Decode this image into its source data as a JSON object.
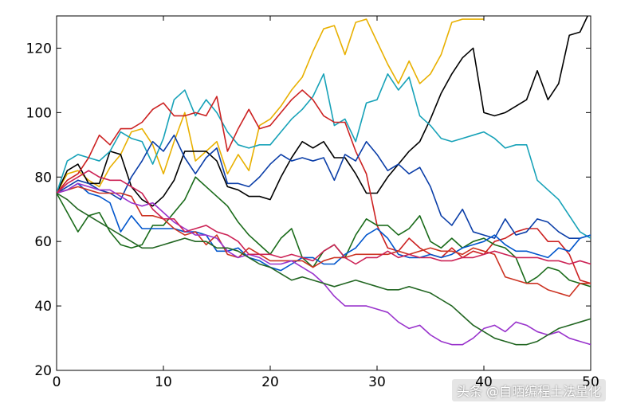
{
  "watermark": "头条 @自晒编程土法量化",
  "chart_data": {
    "type": "line",
    "title": "",
    "xlabel": "",
    "ylabel": "",
    "xlim": [
      0,
      50
    ],
    "ylim": [
      20,
      130
    ],
    "xticks": [
      0,
      10,
      20,
      30,
      40,
      50
    ],
    "yticks": [
      20,
      40,
      60,
      80,
      100,
      120
    ],
    "grid": false,
    "x": [
      0,
      1,
      2,
      3,
      4,
      5,
      6,
      7,
      8,
      9,
      10,
      11,
      12,
      13,
      14,
      15,
      16,
      17,
      18,
      19,
      20,
      21,
      22,
      23,
      24,
      25,
      26,
      27,
      28,
      29,
      30,
      31,
      32,
      33,
      34,
      35,
      36,
      37,
      38,
      39,
      40,
      41,
      42,
      43,
      44,
      45,
      46,
      47,
      48,
      49,
      50
    ],
    "series": [
      {
        "color": "#e8b000",
        "values": [
          75,
          81,
          82,
          79,
          77,
          83,
          87,
          94,
          95,
          90,
          81,
          91,
          100,
          85,
          88,
          91,
          81,
          87,
          82,
          96,
          98,
          102,
          107,
          111,
          119,
          126,
          127,
          118,
          128,
          129,
          122,
          115,
          109,
          116,
          109,
          112,
          118,
          128,
          129,
          129,
          129,
          null,
          null,
          null,
          null,
          null,
          null,
          null,
          null,
          null,
          null
        ]
      },
      {
        "color": "#000000",
        "values": [
          75,
          82,
          84,
          78,
          78,
          88,
          87,
          77,
          73,
          71,
          74,
          79,
          88,
          88,
          88,
          85,
          77,
          76,
          74,
          74,
          73,
          80,
          86,
          91,
          89,
          91,
          86,
          86,
          81,
          75,
          75,
          80,
          84,
          88,
          91,
          98,
          106,
          112,
          117,
          120,
          100,
          99,
          100,
          102,
          104,
          113,
          104,
          109,
          124,
          125,
          132
        ]
      },
      {
        "color": "#17a2b8",
        "values": [
          75,
          85,
          87,
          86,
          85,
          88,
          94,
          92,
          91,
          84,
          92,
          104,
          107,
          99,
          104,
          100,
          94,
          90,
          89,
          90,
          90,
          94,
          98,
          101,
          105,
          112,
          96,
          98,
          91,
          103,
          104,
          112,
          107,
          111,
          99,
          96,
          92,
          91,
          92,
          93,
          94,
          92,
          89,
          90,
          90,
          79,
          76,
          73,
          68,
          63,
          61
        ]
      },
      {
        "color": "#cc2222",
        "values": [
          75,
          79,
          81,
          86,
          93,
          90,
          95,
          95,
          97,
          101,
          103,
          99,
          99,
          100,
          99,
          105,
          88,
          95,
          101,
          95,
          96,
          100,
          104,
          107,
          104,
          99,
          97,
          97,
          88,
          81,
          65,
          58,
          57,
          61,
          58,
          56,
          55,
          58,
          55,
          57,
          56,
          60,
          61,
          63,
          64,
          64,
          60,
          60,
          56,
          48,
          47
        ]
      },
      {
        "color": "#0b3ea8",
        "values": [
          75,
          77,
          79,
          78,
          76,
          75,
          73,
          80,
          85,
          91,
          88,
          93,
          86,
          81,
          86,
          89,
          78,
          78,
          77,
          80,
          84,
          87,
          85,
          86,
          85,
          86,
          79,
          87,
          85,
          91,
          87,
          82,
          84,
          81,
          83,
          77,
          68,
          65,
          70,
          63,
          62,
          61,
          67,
          62,
          63,
          67,
          66,
          63,
          61,
          61,
          62
        ]
      },
      {
        "color": "#1a6b1a",
        "values": [
          75,
          69,
          63,
          68,
          69,
          63,
          59,
          58,
          59,
          65,
          65,
          69,
          73,
          80,
          77,
          74,
          71,
          66,
          62,
          59,
          56,
          61,
          64,
          55,
          52,
          57,
          59,
          55,
          62,
          67,
          65,
          65,
          62,
          64,
          68,
          60,
          58,
          61,
          58,
          60,
          61,
          59,
          58,
          55,
          47,
          49,
          52,
          51,
          48,
          47,
          46
        ]
      },
      {
        "color": "#0055cc",
        "values": [
          75,
          76,
          78,
          75,
          74,
          72,
          63,
          68,
          64,
          64,
          64,
          64,
          63,
          63,
          62,
          57,
          57,
          58,
          55,
          54,
          52,
          51,
          53,
          55,
          55,
          53,
          53,
          56,
          58,
          62,
          64,
          61,
          56,
          55,
          55,
          56,
          55,
          56,
          58,
          59,
          60,
          62,
          59,
          57,
          57,
          56,
          55,
          58,
          57,
          61,
          62
        ]
      },
      {
        "color": "#cc3322",
        "values": [
          75,
          76,
          77,
          76,
          75,
          75,
          75,
          74,
          68,
          68,
          67,
          64,
          62,
          63,
          59,
          62,
          56,
          55,
          58,
          56,
          54,
          54,
          54,
          54,
          52,
          54,
          55,
          55,
          56,
          56,
          56,
          56,
          57,
          56,
          57,
          58,
          57,
          57,
          56,
          58,
          57,
          56,
          49,
          48,
          47,
          47,
          45,
          44,
          43,
          47,
          47
        ]
      },
      {
        "color": "#9933cc",
        "values": [
          75,
          76,
          78,
          77,
          76,
          76,
          74,
          72,
          71,
          72,
          69,
          66,
          64,
          62,
          62,
          61,
          57,
          55,
          56,
          55,
          53,
          53,
          54,
          52,
          50,
          47,
          43,
          40,
          40,
          40,
          39,
          38,
          35,
          33,
          34,
          31,
          29,
          28,
          28,
          30,
          33,
          34,
          32,
          35,
          34,
          32,
          31,
          32,
          30,
          29,
          28
        ]
      },
      {
        "color": "#cc2255",
        "values": [
          75,
          78,
          80,
          82,
          80,
          79,
          79,
          77,
          75,
          70,
          67,
          67,
          63,
          64,
          65,
          63,
          62,
          60,
          56,
          56,
          56,
          55,
          56,
          55,
          54,
          57,
          59,
          55,
          53,
          55,
          55,
          57,
          55,
          56,
          55,
          55,
          54,
          54,
          55,
          55,
          56,
          57,
          56,
          55,
          55,
          55,
          54,
          54,
          53,
          54,
          53
        ]
      },
      {
        "color": "#226622",
        "values": [
          75,
          73,
          70,
          68,
          66,
          64,
          62,
          60,
          58,
          58,
          59,
          60,
          61,
          60,
          60,
          58,
          58,
          57,
          55,
          53,
          52,
          50,
          48,
          49,
          48,
          47,
          46,
          47,
          48,
          47,
          46,
          45,
          45,
          46,
          45,
          44,
          42,
          40,
          37,
          34,
          32,
          30,
          29,
          28,
          28,
          29,
          31,
          33,
          34,
          35,
          36
        ]
      }
    ]
  }
}
